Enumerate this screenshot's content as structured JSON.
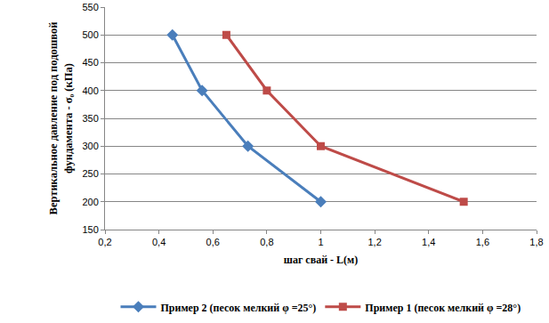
{
  "chart_data": {
    "type": "line",
    "x_label": "шаг свай - L(м)",
    "y_label": "Вертикальное давление под подошвой\nфундамента - σ₀ (кПа)",
    "xlim": [
      0.2,
      1.8
    ],
    "xticks": [
      {
        "value": 0.2,
        "label": "0,2"
      },
      {
        "value": 0.4,
        "label": "0,4"
      },
      {
        "value": 0.6,
        "label": "0,6"
      },
      {
        "value": 0.8,
        "label": "0,8"
      },
      1,
      {
        "value": 1.2,
        "label": "1,2"
      },
      {
        "value": 1.4,
        "label": "1,4"
      },
      {
        "value": 1.6,
        "label": "1,6"
      },
      {
        "value": 1.8,
        "label": "1,8"
      }
    ],
    "ylim": [
      150,
      550
    ],
    "yticks": [
      150,
      200,
      250,
      300,
      350,
      400,
      450,
      500,
      550
    ],
    "grid": "y",
    "legend": "bottom",
    "series": [
      {
        "name": "Пример 2 (песок мелкий φ =25°)",
        "color": "#4a7ebb",
        "marker": "diamond",
        "x": [
          0.45,
          0.56,
          0.73,
          1.0
        ],
        "values": [
          500,
          400,
          300,
          200
        ]
      },
      {
        "name": "Пример 1 (песок мелкий φ =28°)",
        "color": "#be4b48",
        "marker": "square",
        "x": [
          0.65,
          0.8,
          1.0,
          1.53
        ],
        "values": [
          500,
          400,
          300,
          200
        ]
      }
    ]
  }
}
